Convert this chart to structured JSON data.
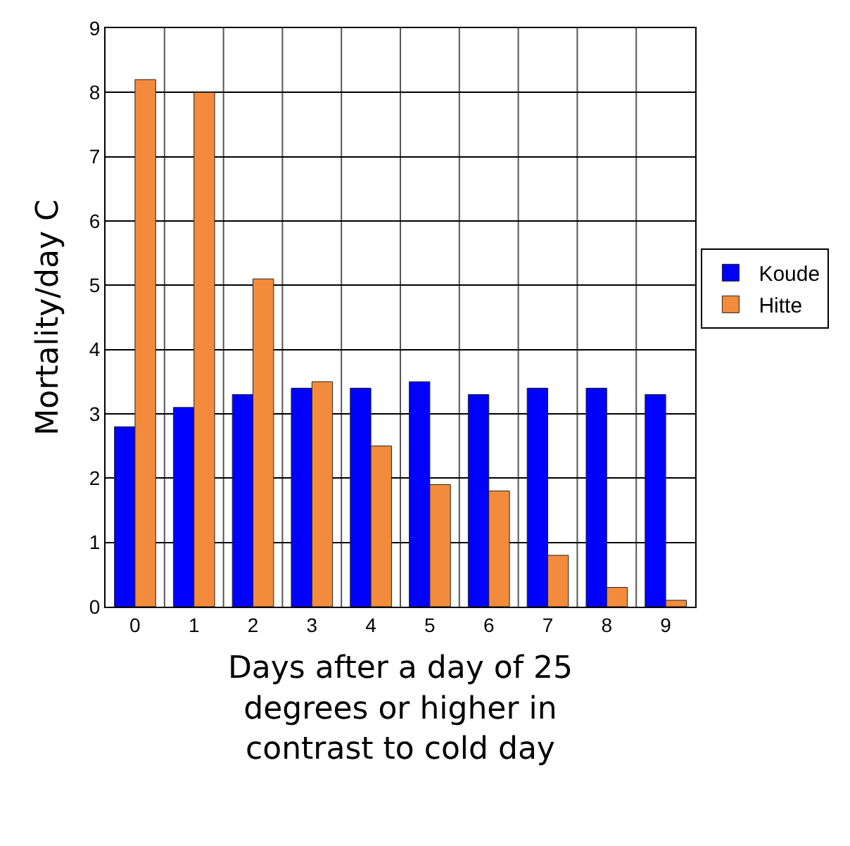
{
  "chart_data": {
    "type": "bar",
    "xlabel": "Days after a day of 25 degrees or higher in contrast to cold day",
    "ylabel": "Mortality/day C",
    "categories": [
      "0",
      "1",
      "2",
      "3",
      "4",
      "5",
      "6",
      "7",
      "8",
      "9"
    ],
    "series": [
      {
        "name": "Koude",
        "color": "#0000ff",
        "values": [
          2.8,
          3.1,
          3.3,
          3.4,
          3.4,
          3.5,
          3.3,
          3.4,
          3.4,
          3.3
        ]
      },
      {
        "name": "Hitte",
        "color": "#f28c3c",
        "values": [
          8.2,
          8.0,
          5.1,
          3.5,
          2.5,
          1.9,
          1.8,
          0.8,
          0.3,
          0.1
        ]
      }
    ],
    "ylim": [
      0,
      9
    ],
    "yticks": [
      0,
      1,
      2,
      3,
      4,
      5,
      6,
      7,
      8,
      9
    ],
    "grid": true,
    "legend": "right"
  }
}
